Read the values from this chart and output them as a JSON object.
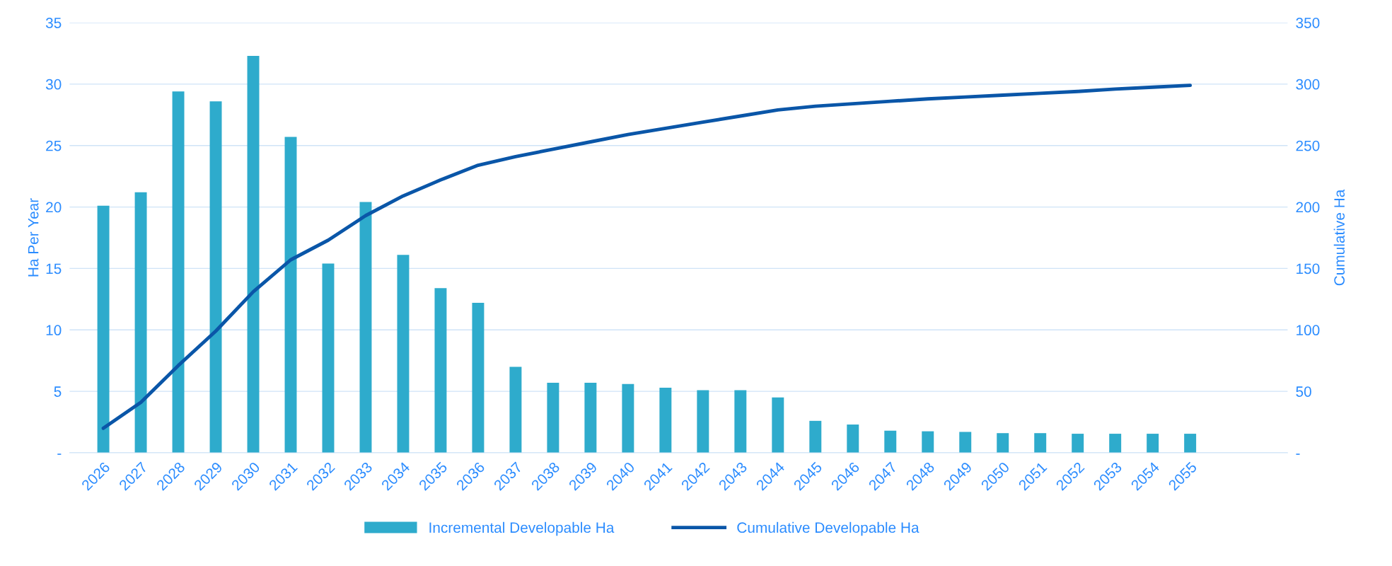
{
  "chart_data": {
    "type": "bar",
    "ylabel": "Ha Per Year",
    "y2label": "Cumulative Ha",
    "categories": [
      "2026",
      "2027",
      "2028",
      "2029",
      "2030",
      "2031",
      "2032",
      "2033",
      "2034",
      "2035",
      "2036",
      "2037",
      "2038",
      "2039",
      "2040",
      "2041",
      "2042",
      "2043",
      "2044",
      "2045",
      "2046",
      "2047",
      "2048",
      "2049",
      "2050",
      "2051",
      "2052",
      "2053",
      "2054",
      "2055"
    ],
    "series": [
      {
        "name": "Incremental Developable Ha",
        "color": "#2eabcc",
        "values": [
          20.1,
          21.2,
          29.4,
          28.6,
          32.3,
          25.7,
          15.4,
          20.4,
          16.1,
          13.4,
          12.2,
          7.0,
          5.7,
          5.7,
          5.6,
          5.3,
          5.1,
          5.1,
          4.5,
          2.6,
          2.3,
          1.8,
          1.75,
          1.7,
          1.6,
          1.6,
          1.55,
          1.55,
          1.55,
          1.55
        ]
      },
      {
        "name": "Cumulative Developable Ha",
        "type": "line",
        "axis": "y2",
        "color": "#0a56a8",
        "values": [
          20,
          41,
          71,
          99,
          131,
          157,
          173,
          193,
          209,
          222,
          234,
          241,
          247,
          253,
          259,
          264,
          269,
          274,
          279,
          282,
          284,
          286,
          288,
          289.5,
          291,
          292.5,
          294,
          296,
          297.5,
          299
        ]
      }
    ],
    "ylim": [
      0,
      35
    ],
    "yticks": [
      {
        "value": 0,
        "label": "-"
      },
      5,
      10,
      15,
      20,
      25,
      30,
      35
    ],
    "y2lim": [
      0,
      350
    ],
    "y2ticks": [
      {
        "value": 0,
        "label": "-"
      },
      50,
      100,
      150,
      200,
      250,
      300,
      350
    ],
    "grid": "y",
    "legend": "bottom",
    "marker": "none",
    "line_style": "solid"
  }
}
